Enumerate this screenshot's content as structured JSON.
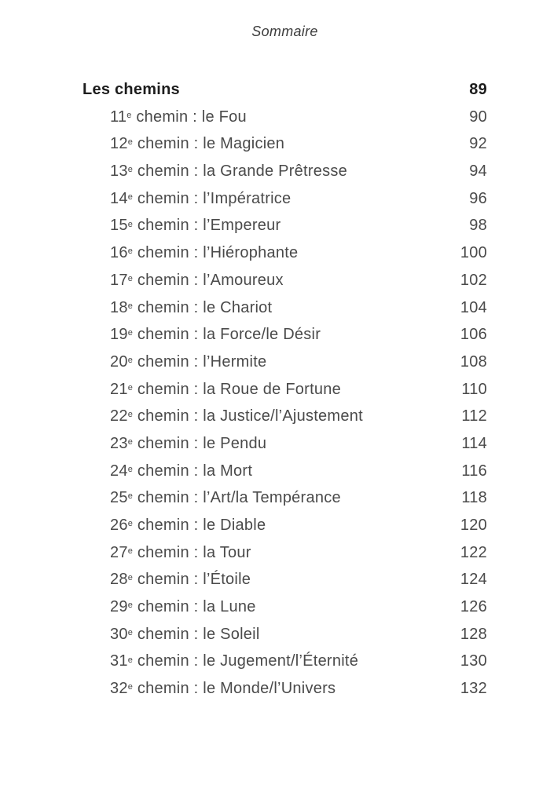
{
  "page_header": "Sommaire",
  "toc": {
    "section": {
      "label": "Les chemins",
      "page": "89"
    },
    "entries": [
      {
        "num": "11",
        "ord": "e",
        "title": "chemin : le Fou",
        "page": "90"
      },
      {
        "num": "12",
        "ord": "e",
        "title": "chemin : le Magicien",
        "page": "92"
      },
      {
        "num": "13",
        "ord": "e",
        "title": "chemin : la Grande Prêtresse",
        "page": "94"
      },
      {
        "num": "14",
        "ord": "e",
        "title": "chemin : l’Impératrice",
        "page": "96"
      },
      {
        "num": "15",
        "ord": "e",
        "title": "chemin : l’Empereur",
        "page": "98"
      },
      {
        "num": "16",
        "ord": "e",
        "title": "chemin : l’Hiérophante",
        "page": "100"
      },
      {
        "num": "17",
        "ord": "e",
        "title": "chemin : l’Amoureux",
        "page": "102"
      },
      {
        "num": "18",
        "ord": "e",
        "title": "chemin : le Chariot",
        "page": "104"
      },
      {
        "num": "19",
        "ord": "e",
        "title": "chemin : la Force/le Désir",
        "page": "106"
      },
      {
        "num": "20",
        "ord": "e",
        "title": "chemin : l’Hermite",
        "page": "108"
      },
      {
        "num": "21",
        "ord": "e",
        "title": "chemin : la Roue de Fortune",
        "page": "110"
      },
      {
        "num": "22",
        "ord": "e",
        "title": "chemin : la Justice/l’Ajustement",
        "page": "112"
      },
      {
        "num": "23",
        "ord": "e",
        "title": "chemin : le Pendu",
        "page": "114"
      },
      {
        "num": "24",
        "ord": "e",
        "title": "chemin : la Mort",
        "page": "116"
      },
      {
        "num": "25",
        "ord": "e",
        "title": "chemin : l’Art/la Tempérance",
        "page": "118"
      },
      {
        "num": "26",
        "ord": "e",
        "title": "chemin : le Diable",
        "page": "120"
      },
      {
        "num": "27",
        "ord": "e",
        "title": "chemin : la Tour",
        "page": "122"
      },
      {
        "num": "28",
        "ord": "e",
        "title": "chemin : l’Étoile",
        "page": "124"
      },
      {
        "num": "29",
        "ord": "e",
        "title": "chemin : la Lune",
        "page": "126"
      },
      {
        "num": "30",
        "ord": "e",
        "title": "chemin : le Soleil",
        "page": "128"
      },
      {
        "num": "31",
        "ord": "e",
        "title": "chemin : le Jugement/l’Éternité",
        "page": "130"
      },
      {
        "num": "32",
        "ord": "e",
        "title": "chemin : le Monde/l’Univers",
        "page": "132"
      }
    ],
    "text_color": "#4a4a4a",
    "heading_color": "#1d1d1d",
    "background_color": "#ffffff"
  }
}
